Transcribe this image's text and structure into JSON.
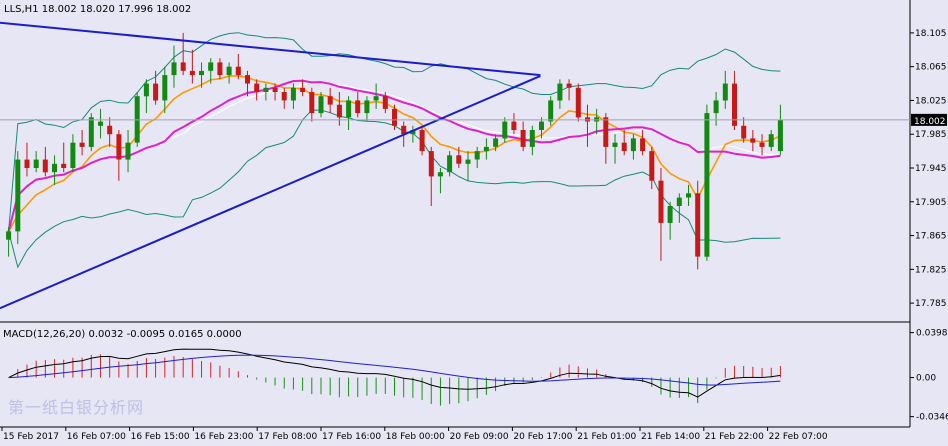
{
  "chart_data": {
    "type": "candlestick",
    "symbol_header": "LLS,H1  18.002 18.020 17.996 18.002",
    "colors": {
      "background": "#e6e6f5",
      "bull": "#128a12",
      "bear": "#c81818",
      "ema_fast": "#ff9900",
      "ma_slow": "#e020c8",
      "bollinger": "#178a7a",
      "trendline": "#1c1ccc",
      "macd_hist_pos": "#dd2222",
      "macd_hist_neg": "#129612",
      "macd_line": "#000000",
      "signal_line": "#2020cc",
      "price_tag_bg": "#000000",
      "price_tag_text": "#ffffff"
    },
    "price_axis": {
      "ylim": [
        17.765,
        18.125
      ],
      "ticks": [
        "18.105",
        "18.065",
        "18.025",
        "17.985",
        "17.945",
        "17.905",
        "17.865",
        "17.825",
        "17.785"
      ],
      "current_price": "18.002"
    },
    "time_axis": {
      "labels": [
        "15 Feb 2017",
        "16 Feb 07:00",
        "16 Feb 15:00",
        "16 Feb 23:00",
        "17 Feb 08:00",
        "17 Feb 16:00",
        "18 Feb 00:00",
        "20 Feb 09:00",
        "20 Feb 17:00",
        "21 Feb 01:00",
        "21 Feb 14:00",
        "21 Feb 22:00",
        "22 Feb 07:00"
      ]
    },
    "candles": [
      [
        17.86,
        17.875,
        17.84,
        17.87
      ],
      [
        17.87,
        17.965,
        17.855,
        17.955
      ],
      [
        17.955,
        17.975,
        17.935,
        17.945
      ],
      [
        17.945,
        17.965,
        17.94,
        17.955
      ],
      [
        17.955,
        17.97,
        17.935,
        17.94
      ],
      [
        17.94,
        17.96,
        17.925,
        17.95
      ],
      [
        17.95,
        17.975,
        17.94,
        17.945
      ],
      [
        17.945,
        17.985,
        17.94,
        17.975
      ],
      [
        17.975,
        17.99,
        17.96,
        17.97
      ],
      [
        17.97,
        18.01,
        17.965,
        18.005
      ],
      [
        17.995,
        18.015,
        17.98,
        18
      ],
      [
        17.995,
        18.005,
        17.97,
        17.985
      ],
      [
        17.985,
        17.99,
        17.93,
        17.955
      ],
      [
        17.955,
        17.99,
        17.94,
        17.975
      ],
      [
        17.975,
        18.035,
        17.97,
        18.03
      ],
      [
        18.03,
        18.05,
        18.01,
        18.045
      ],
      [
        18.045,
        18.06,
        18.02,
        18.025
      ],
      [
        18.025,
        18.065,
        18.01,
        18.055
      ],
      [
        18.055,
        18.09,
        18.04,
        18.07
      ],
      [
        18.07,
        18.105,
        18.055,
        18.06
      ],
      [
        18.06,
        18.085,
        18.045,
        18.055
      ],
      [
        18.055,
        18.07,
        18.04,
        18.06
      ],
      [
        18.06,
        18.075,
        18.045,
        18.07
      ],
      [
        18.07,
        18.075,
        18.05,
        18.055
      ],
      [
        18.055,
        18.07,
        18.045,
        18.065
      ],
      [
        18.065,
        18.08,
        18.05,
        18.055
      ],
      [
        18.055,
        18.06,
        18.03,
        18.045
      ],
      [
        18.045,
        18.05,
        18.025,
        18.035
      ],
      [
        18.035,
        18.045,
        18.025,
        18.04
      ],
      [
        18.04,
        18.045,
        18.025,
        18.035
      ],
      [
        18.035,
        18.04,
        18.015,
        18.025
      ],
      [
        18.025,
        18.045,
        18.015,
        18.04
      ],
      [
        18.04,
        18.05,
        18.03,
        18.035
      ],
      [
        18.035,
        18.04,
        18,
        18.01
      ],
      [
        18.01,
        18.035,
        18.005,
        18.03
      ],
      [
        18.03,
        18.04,
        18.01,
        18.02
      ],
      [
        18.02,
        18.035,
        17.995,
        18.005
      ],
      [
        18.005,
        18.03,
        17.99,
        18.025
      ],
      [
        18.025,
        18.035,
        18.005,
        18.01
      ],
      [
        18.01,
        18.03,
        18,
        18.025
      ],
      [
        18.025,
        18.045,
        18.015,
        18.03
      ],
      [
        18.03,
        18.035,
        18.01,
        18.015
      ],
      [
        18.015,
        18.02,
        17.99,
        17.995
      ],
      [
        17.995,
        18,
        17.97,
        17.985
      ],
      [
        17.985,
        17.995,
        17.975,
        17.99
      ],
      [
        17.99,
        17.995,
        17.96,
        17.965
      ],
      [
        17.965,
        17.97,
        17.9,
        17.935
      ],
      [
        17.935,
        17.945,
        17.915,
        17.94
      ],
      [
        17.94,
        17.965,
        17.935,
        17.96
      ],
      [
        17.96,
        17.97,
        17.945,
        17.95
      ],
      [
        17.95,
        17.965,
        17.93,
        17.955
      ],
      [
        17.955,
        17.97,
        17.945,
        17.965
      ],
      [
        17.965,
        17.98,
        17.955,
        17.97
      ],
      [
        17.97,
        17.985,
        17.965,
        17.98
      ],
      [
        17.98,
        18.005,
        17.975,
        18
      ],
      [
        18,
        18.01,
        17.985,
        17.99
      ],
      [
        17.99,
        18,
        17.965,
        17.97
      ],
      [
        17.97,
        17.995,
        17.96,
        17.99
      ],
      [
        17.99,
        18.005,
        17.98,
        18
      ],
      [
        18,
        18.03,
        17.995,
        18.025
      ],
      [
        18.025,
        18.05,
        18.015,
        18.045
      ],
      [
        18.045,
        18.05,
        18.025,
        18.04
      ],
      [
        18.04,
        18.045,
        18,
        18.005
      ],
      [
        18.005,
        18.02,
        17.97,
        18
      ],
      [
        18,
        18.015,
        17.985,
        18.005
      ],
      [
        18.005,
        18.01,
        17.95,
        17.97
      ],
      [
        17.97,
        17.985,
        17.95,
        17.975
      ],
      [
        17.975,
        17.99,
        17.96,
        17.965
      ],
      [
        17.965,
        17.985,
        17.955,
        17.98
      ],
      [
        17.98,
        17.99,
        17.96,
        17.965
      ],
      [
        17.965,
        17.97,
        17.92,
        17.93
      ],
      [
        17.93,
        17.945,
        17.835,
        17.88
      ],
      [
        17.88,
        17.905,
        17.86,
        17.9
      ],
      [
        17.9,
        17.915,
        17.88,
        17.91
      ],
      [
        17.91,
        17.925,
        17.9,
        17.915
      ],
      [
        17.915,
        17.93,
        17.825,
        17.84
      ],
      [
        17.84,
        18.02,
        17.835,
        18.01
      ],
      [
        18.01,
        18.035,
        17.995,
        18.025
      ],
      [
        18.025,
        18.06,
        18.015,
        18.045
      ],
      [
        18.045,
        18.06,
        17.99,
        17.995
      ],
      [
        17.995,
        18.005,
        17.975,
        17.98
      ],
      [
        17.98,
        17.99,
        17.965,
        17.975
      ],
      [
        17.975,
        17.985,
        17.96,
        17.97
      ],
      [
        17.97,
        17.99,
        17.965,
        17.985
      ],
      [
        17.965,
        18.02,
        17.96,
        18.002
      ]
    ],
    "trendlines": [
      {
        "from": [
          0,
          18.117
        ],
        "to": [
          1.0,
          18.055
        ]
      },
      {
        "from": [
          0,
          17.779
        ],
        "to": [
          1.0,
          18.054
        ]
      }
    ],
    "macd": {
      "label": "MACD(12,26,20) 0.0032 -0.0095 0.0165 0.0000",
      "ylim": [
        -0.042,
        0.043
      ],
      "ticks": [
        "0.0398",
        "0.00",
        "-0.0346"
      ]
    },
    "watermark": "第一纸白银分析网"
  }
}
